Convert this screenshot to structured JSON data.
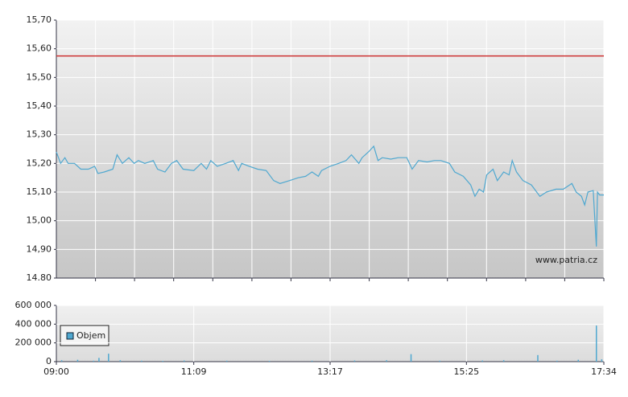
{
  "chart_data": [
    {
      "type": "line",
      "xlim": [
        540,
        1054
      ],
      "ylim": [
        14.8,
        15.7
      ],
      "yticks": [
        {
          "value": 15.7,
          "label": "15,70"
        },
        {
          "value": 15.6,
          "label": "15,60"
        },
        {
          "value": 15.5,
          "label": "15,50"
        },
        {
          "value": 15.4,
          "label": "15,40"
        },
        {
          "value": 15.3,
          "label": "15,30"
        },
        {
          "value": 15.2,
          "label": "15,20"
        },
        {
          "value": 15.1,
          "label": "15,10"
        },
        {
          "value": 15.0,
          "label": "15,00"
        },
        {
          "value": 14.9,
          "label": "14,90"
        },
        {
          "value": 14.8,
          "label": "14.80"
        }
      ],
      "grid": true,
      "reference_line": 15.575,
      "reference_color": "#cc3333",
      "annotation": "www.patria.cz",
      "color": "#4fa8d0",
      "x": [
        540,
        544,
        548,
        551,
        557,
        563,
        570,
        576,
        579,
        585,
        593,
        597,
        602,
        608,
        613,
        617,
        623,
        631,
        635,
        642,
        648,
        653,
        659,
        669,
        676,
        681,
        685,
        691,
        699,
        706,
        711,
        714,
        721,
        729,
        737,
        744,
        750,
        759,
        767,
        774,
        780,
        786,
        789,
        797,
        805,
        812,
        817,
        824,
        827,
        833,
        838,
        842,
        846,
        854,
        861,
        869,
        874,
        880,
        888,
        895,
        901,
        909,
        914,
        922,
        929,
        933,
        937,
        941,
        944,
        950,
        954,
        960,
        965,
        968,
        972,
        978,
        986,
        994,
        1000,
        1009,
        1016,
        1024,
        1028,
        1033,
        1036,
        1039,
        1044,
        1047,
        1048,
        1050,
        1054
      ],
      "values": [
        15.24,
        15.2,
        15.22,
        15.2,
        15.2,
        15.18,
        15.18,
        15.19,
        15.165,
        15.17,
        15.18,
        15.23,
        15.2,
        15.22,
        15.2,
        15.21,
        15.2,
        15.21,
        15.18,
        15.17,
        15.2,
        15.21,
        15.18,
        15.175,
        15.2,
        15.18,
        15.21,
        15.19,
        15.2,
        15.21,
        15.175,
        15.2,
        15.19,
        15.18,
        15.175,
        15.14,
        15.13,
        15.14,
        15.15,
        15.155,
        15.17,
        15.155,
        15.175,
        15.19,
        15.2,
        15.21,
        15.23,
        15.2,
        15.22,
        15.24,
        15.26,
        15.21,
        15.22,
        15.215,
        15.22,
        15.22,
        15.18,
        15.21,
        15.205,
        15.21,
        15.21,
        15.2,
        15.17,
        15.155,
        15.125,
        15.085,
        15.11,
        15.1,
        15.16,
        15.18,
        15.14,
        15.17,
        15.16,
        15.21,
        15.17,
        15.14,
        15.125,
        15.085,
        15.1,
        15.11,
        15.11,
        15.13,
        15.1,
        15.085,
        15.055,
        15.1,
        15.105,
        14.91,
        15.1,
        15.09,
        15.09
      ]
    },
    {
      "type": "bar",
      "xlim": [
        540,
        1054
      ],
      "xticks": [
        {
          "value": 540,
          "label": "09:00"
        },
        {
          "value": 669,
          "label": "11:09"
        },
        {
          "value": 797,
          "label": "13:17"
        },
        {
          "value": 925,
          "label": "15:25"
        },
        {
          "value": 1054,
          "label": "17:34"
        }
      ],
      "ylim": [
        0,
        600000
      ],
      "yticks": [
        0,
        {
          "value": 200000,
          "label": "200 000"
        },
        {
          "value": 400000,
          "label": "400 000"
        },
        {
          "value": 600000,
          "label": "600 000"
        }
      ],
      "grid": true,
      "x": [
        545,
        560,
        575,
        580,
        589,
        600,
        620,
        640,
        660,
        700,
        740,
        780,
        820,
        850,
        873,
        900,
        940,
        960,
        992,
        1010,
        1030,
        1047,
        1052
      ],
      "series": [
        {
          "name": "Objem",
          "color": "#4fa8d0",
          "values": [
            15000,
            20000,
            10000,
            40000,
            85000,
            15000,
            10000,
            8000,
            12000,
            10000,
            8000,
            10000,
            12000,
            15000,
            80000,
            10000,
            12000,
            15000,
            70000,
            10000,
            20000,
            385000,
            25000
          ]
        }
      ]
    }
  ]
}
